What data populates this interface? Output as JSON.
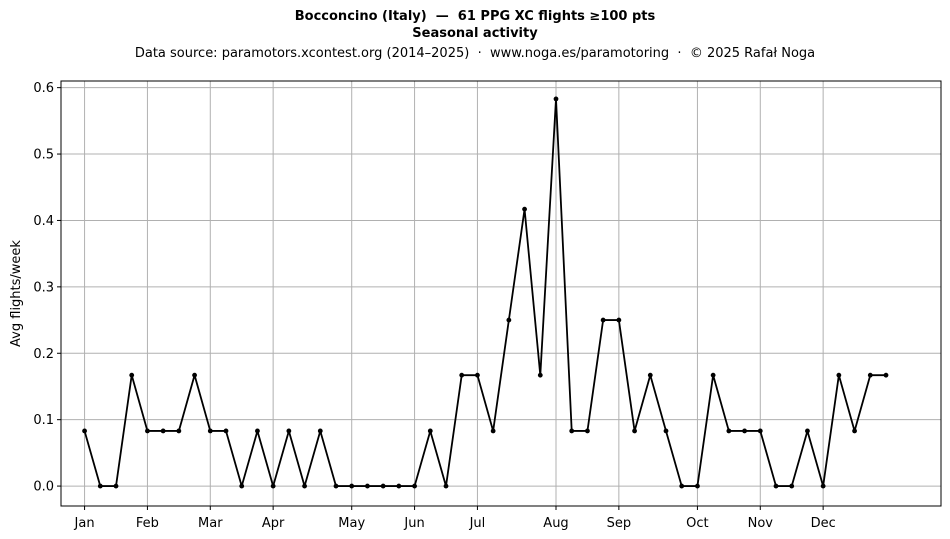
{
  "chart_data": {
    "type": "line",
    "title": "Bocconcino (Italy)  —  61 PPG XC flights ≥100 pts",
    "subtitle": "Seasonal activity",
    "source_note": "Data source: paramotors.xcontest.org (2014–2025)  ·  www.noga.es/paramotoring  ·  © 2025 Rafał Noga",
    "xlabel": "",
    "ylabel": "Avg flights/week",
    "x_unit": "week of year",
    "xlim": [
      -1.5,
      54.5
    ],
    "ylim": [
      -0.03,
      0.61
    ],
    "y_ticks": [
      0.0,
      0.1,
      0.2,
      0.3,
      0.4,
      0.5,
      0.6
    ],
    "y_tick_labels": [
      "0.0",
      "0.1",
      "0.2",
      "0.3",
      "0.4",
      "0.5",
      "0.6"
    ],
    "x_ticks": [
      {
        "week": 0,
        "label": "Jan"
      },
      {
        "week": 4,
        "label": "Feb"
      },
      {
        "week": 8,
        "label": "Mar"
      },
      {
        "week": 12,
        "label": "Apr"
      },
      {
        "week": 17,
        "label": "May"
      },
      {
        "week": 21,
        "label": "Jun"
      },
      {
        "week": 25,
        "label": "Jul"
      },
      {
        "week": 30,
        "label": "Aug"
      },
      {
        "week": 34,
        "label": "Sep"
      },
      {
        "week": 39,
        "label": "Oct"
      },
      {
        "week": 43,
        "label": "Nov"
      },
      {
        "week": 47,
        "label": "Dec"
      }
    ],
    "grid": true,
    "color": "#000000",
    "grid_color": "#b0b0b0",
    "series": [
      {
        "x": [
          0,
          1,
          2,
          3,
          4,
          5,
          6,
          7,
          8,
          9,
          10,
          11,
          12,
          13,
          14,
          15,
          16,
          17,
          18,
          19,
          20,
          21,
          22,
          23,
          24,
          25,
          26,
          27,
          28,
          29,
          30,
          31,
          32,
          33,
          34,
          35,
          36,
          37,
          38,
          39,
          40,
          41,
          42,
          43,
          44,
          45,
          46,
          47,
          48,
          49,
          50,
          51
        ],
        "values": [
          0.083,
          0,
          0,
          0.167,
          0.083,
          0.083,
          0.083,
          0.167,
          0.083,
          0.083,
          0,
          0.083,
          0,
          0.083,
          0,
          0.083,
          0,
          0,
          0,
          0,
          0,
          0,
          0.083,
          0,
          0.167,
          0.167,
          0.083,
          0.25,
          0.417,
          0.167,
          0.583,
          0.083,
          0.083,
          0.25,
          0.25,
          0.083,
          0.167,
          0.083,
          0,
          0,
          0.167,
          0.083,
          0.083,
          0.083,
          0,
          0,
          0.083,
          0,
          0.167,
          0.083,
          0.167,
          0.167
        ]
      }
    ]
  }
}
